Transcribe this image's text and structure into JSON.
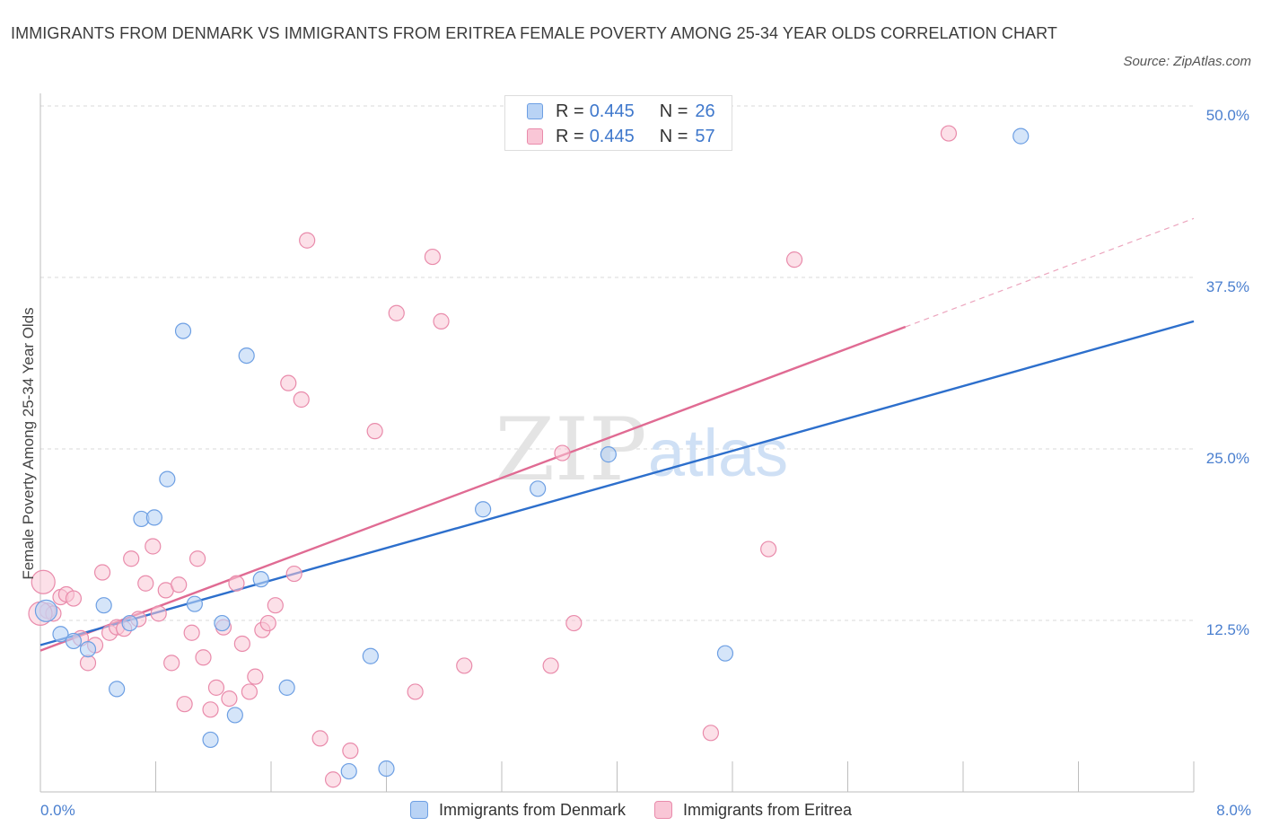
{
  "header": {
    "title": "IMMIGRANTS FROM DENMARK VS IMMIGRANTS FROM ERITREA FEMALE POVERTY AMONG 25-34 YEAR OLDS CORRELATION CHART",
    "source": "Source: ZipAtlas.com"
  },
  "watermark": {
    "zip": "ZIP",
    "atlas": "atlas"
  },
  "legend_top": [
    {
      "r_label": "R =",
      "r_value": "0.445",
      "n_label": "N =",
      "n_value": "26"
    },
    {
      "r_label": "R =",
      "r_value": "0.445",
      "n_label": "N =",
      "n_value": "57"
    }
  ],
  "colors": {
    "blue_fill": "#b9d3f5",
    "blue_stroke": "#6d9fe3",
    "blue_line": "#2d6fcc",
    "pink_fill": "#f9c6d6",
    "pink_stroke": "#e98bab",
    "pink_line": "#e06b93",
    "grid": "#d8d8d8",
    "axis_text": "#4a7fcf"
  },
  "chart_data": {
    "type": "scatter",
    "title": "IMMIGRANTS FROM DENMARK VS IMMIGRANTS FROM ERITREA FEMALE POVERTY AMONG 25-34 YEAR OLDS CORRELATION CHART",
    "xlabel": "",
    "ylabel": "Female Poverty Among 25-34 Year Olds",
    "xlim": [
      0,
      8
    ],
    "ylim": [
      0,
      50
    ],
    "x_tick_labels": [
      "0.0%",
      "8.0%"
    ],
    "y_ticks": [
      {
        "value": 12.5,
        "label": "12.5%"
      },
      {
        "value": 25,
        "label": "25.0%"
      },
      {
        "value": 37.5,
        "label": "37.5%"
      },
      {
        "value": 50,
        "label": "50.0%"
      }
    ],
    "grid": true,
    "legend_position": "bottom",
    "series": [
      {
        "name": "Immigrants from Denmark",
        "color": "#6d9fe3",
        "points": [
          [
            0.04,
            13.2
          ],
          [
            0.14,
            11.5
          ],
          [
            0.23,
            11.0
          ],
          [
            0.33,
            10.4
          ],
          [
            0.44,
            13.6
          ],
          [
            0.53,
            7.5
          ],
          [
            0.62,
            12.3
          ],
          [
            0.7,
            19.9
          ],
          [
            0.79,
            20.0
          ],
          [
            0.88,
            22.8
          ],
          [
            0.99,
            33.6
          ],
          [
            1.07,
            13.7
          ],
          [
            1.18,
            3.8
          ],
          [
            1.26,
            12.3
          ],
          [
            1.35,
            5.6
          ],
          [
            1.43,
            31.8
          ],
          [
            1.53,
            15.5
          ],
          [
            1.71,
            7.6
          ],
          [
            2.14,
            1.5
          ],
          [
            2.29,
            9.9
          ],
          [
            2.4,
            1.7
          ],
          [
            3.07,
            20.6
          ],
          [
            3.45,
            22.1
          ],
          [
            3.94,
            24.6
          ],
          [
            4.75,
            10.1
          ],
          [
            6.8,
            47.8
          ]
        ],
        "trend": [
          [
            0,
            10.7
          ],
          [
            8,
            34.3
          ]
        ]
      },
      {
        "name": "Immigrants from Eritrea",
        "color": "#e98bab",
        "points": [
          [
            0.02,
            15.3
          ],
          [
            0.05,
            13.2
          ],
          [
            0.09,
            13.0
          ],
          [
            0.14,
            14.2
          ],
          [
            0.18,
            14.4
          ],
          [
            0.23,
            14.1
          ],
          [
            0.28,
            11.2
          ],
          [
            0.33,
            9.4
          ],
          [
            0.38,
            10.7
          ],
          [
            0.43,
            16.0
          ],
          [
            0.48,
            11.6
          ],
          [
            0.53,
            12.0
          ],
          [
            0.58,
            11.9
          ],
          [
            0.63,
            17.0
          ],
          [
            0.68,
            12.6
          ],
          [
            0.73,
            15.2
          ],
          [
            0.78,
            17.9
          ],
          [
            0.82,
            13.0
          ],
          [
            0.87,
            14.7
          ],
          [
            0.91,
            9.4
          ],
          [
            0.96,
            15.1
          ],
          [
            1.0,
            6.4
          ],
          [
            1.05,
            11.6
          ],
          [
            1.09,
            17.0
          ],
          [
            1.13,
            9.8
          ],
          [
            1.18,
            6.0
          ],
          [
            1.22,
            7.6
          ],
          [
            1.27,
            12.0
          ],
          [
            1.31,
            6.8
          ],
          [
            1.36,
            15.2
          ],
          [
            1.4,
            10.8
          ],
          [
            1.45,
            7.3
          ],
          [
            1.49,
            8.4
          ],
          [
            1.54,
            11.8
          ],
          [
            1.58,
            12.3
          ],
          [
            1.63,
            13.6
          ],
          [
            1.72,
            29.8
          ],
          [
            1.76,
            15.9
          ],
          [
            1.81,
            28.6
          ],
          [
            1.85,
            40.2
          ],
          [
            1.94,
            3.9
          ],
          [
            2.03,
            0.9
          ],
          [
            2.15,
            3.0
          ],
          [
            2.32,
            26.3
          ],
          [
            2.47,
            34.9
          ],
          [
            2.6,
            7.3
          ],
          [
            2.72,
            39.0
          ],
          [
            2.78,
            34.3
          ],
          [
            2.94,
            9.2
          ],
          [
            3.54,
            9.2
          ],
          [
            3.62,
            24.7
          ],
          [
            3.7,
            12.3
          ],
          [
            4.65,
            4.3
          ],
          [
            5.05,
            17.7
          ],
          [
            5.23,
            38.8
          ],
          [
            6.3,
            48.0
          ],
          [
            0.0,
            13.0
          ]
        ],
        "trend": [
          [
            0,
            10.3
          ],
          [
            6.0,
            33.9
          ]
        ],
        "trend_dashed": [
          [
            6.0,
            33.9
          ],
          [
            8,
            41.8
          ]
        ]
      }
    ]
  },
  "legend_bottom": [
    "Immigrants from Denmark",
    "Immigrants from Eritrea"
  ]
}
